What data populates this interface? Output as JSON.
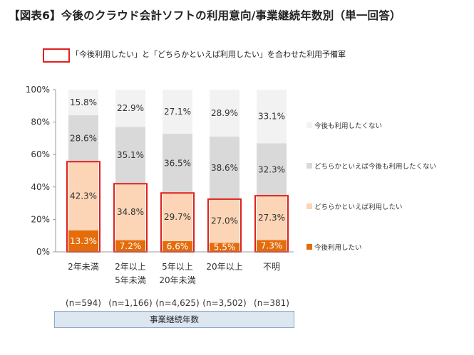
{
  "title": "【図表6】今後のクラウド会計ソフトの利用意向/事業継続年数別（単一回答）",
  "note": "「今後利用したい」と「どちらかといえば利用したい」を合わせた利用予備軍",
  "x_axis_title": "事業継続年数",
  "colors": {
    "accent_box": "#e02020",
    "footer_bg": "#dce6f1"
  },
  "chart_data": {
    "type": "bar",
    "stacked": true,
    "percent": true,
    "categories": [
      [
        "2年未満"
      ],
      [
        "2年以上",
        "5年未満"
      ],
      [
        "5年以上",
        "20年未満"
      ],
      [
        "20年以上"
      ],
      [
        "不明"
      ]
    ],
    "sample_sizes": [
      "(n=594)",
      "(n=1,166)",
      "(n=4,625)",
      "(n=3,502)",
      "(n=381)"
    ],
    "series": [
      {
        "name": "今後利用したい",
        "color": "#e46c0a",
        "values": [
          13.3,
          7.2,
          6.6,
          5.5,
          7.3
        ]
      },
      {
        "name": "どちらかといえば利用したい",
        "color": "#fbd5b5",
        "values": [
          42.3,
          34.8,
          29.7,
          27.0,
          27.3
        ]
      },
      {
        "name": "どちらかといえば今後も利用したくない",
        "color": "#d9d9d9",
        "values": [
          28.6,
          35.1,
          36.5,
          38.6,
          32.3
        ]
      },
      {
        "name": "今後も利用したくない",
        "color": "#f2f2f2",
        "values": [
          15.8,
          22.9,
          27.1,
          28.9,
          33.1
        ]
      }
    ],
    "highlight_series": [
      0,
      1
    ],
    "y_ticks": [
      "0%",
      "20%",
      "40%",
      "60%",
      "80%",
      "100%"
    ],
    "ylim": [
      0,
      100
    ],
    "legend_position": "right",
    "legend_order": [
      3,
      2,
      1,
      0
    ]
  }
}
